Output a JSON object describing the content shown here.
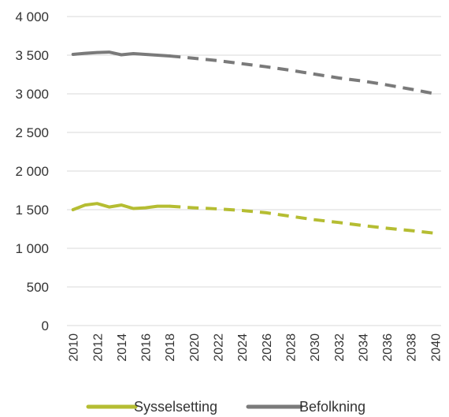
{
  "chart_data": {
    "type": "line",
    "title": "",
    "xlabel": "",
    "ylabel": "",
    "ylim": [
      0,
      4000
    ],
    "y_ticks": [
      0,
      500,
      1000,
      1500,
      2000,
      2500,
      3000,
      3500,
      4000
    ],
    "y_tick_labels": [
      "0",
      "500",
      "1 000",
      "1 500",
      "2 000",
      "2 500",
      "3 000",
      "3 500",
      "4 000"
    ],
    "x_tick_labels": [
      "2010",
      "2012",
      "2014",
      "2016",
      "2018",
      "2020",
      "2022",
      "2024",
      "2026",
      "2028",
      "2030",
      "2032",
      "2034",
      "2036",
      "2038",
      "2040"
    ],
    "x_range": [
      2010,
      2040
    ],
    "grid": "horizontal",
    "legend_position": "bottom",
    "series": [
      {
        "name": "Sysselsetting",
        "color": "#b5bd32",
        "historical": {
          "x": [
            2010,
            2011,
            2012,
            2013,
            2014,
            2015,
            2016,
            2017,
            2018
          ],
          "y": [
            1500,
            1560,
            1580,
            1535,
            1560,
            1515,
            1525,
            1545,
            1545
          ]
        },
        "projection": {
          "x": [
            2018,
            2020,
            2022,
            2024,
            2026,
            2028,
            2030,
            2032,
            2034,
            2036,
            2038,
            2040
          ],
          "y": [
            1545,
            1525,
            1510,
            1490,
            1460,
            1415,
            1370,
            1335,
            1295,
            1260,
            1230,
            1195
          ]
        }
      },
      {
        "name": "Befolkning",
        "color": "#7a7a7a",
        "historical": {
          "x": [
            2010,
            2011,
            2012,
            2013,
            2014,
            2015,
            2016,
            2017,
            2018
          ],
          "y": [
            3510,
            3525,
            3535,
            3540,
            3505,
            3520,
            3510,
            3500,
            3490
          ]
        },
        "projection": {
          "x": [
            2018,
            2020,
            2022,
            2024,
            2026,
            2028,
            2030,
            2032,
            2034,
            2036,
            2038,
            2040
          ],
          "y": [
            3490,
            3460,
            3430,
            3390,
            3350,
            3305,
            3255,
            3205,
            3165,
            3115,
            3060,
            3000
          ]
        }
      }
    ]
  }
}
